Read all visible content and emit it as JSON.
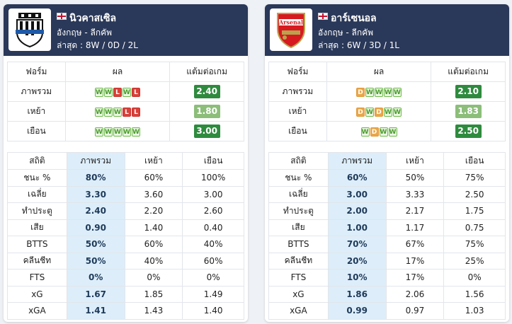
{
  "colors": {
    "header_bg": "#2a3859",
    "highlight_col": "#ddeefa",
    "win": "#6dbb4a",
    "draw": "#e29a34",
    "loss": "#c9302c",
    "score_dark": "#2e8b3e",
    "score_light": "#8cbe7a"
  },
  "teams": [
    {
      "name": "นิวคาสเซิล",
      "league": "อังกฤษ - ลีกคัพ",
      "recent": "ล่าสุด : 8W / 0D / 2L",
      "crest_icon": "newcastle-crest-icon",
      "form_headers": [
        "ฟอร์ม",
        "ผล",
        "แต้มต่อเกม"
      ],
      "form_rows": [
        {
          "label": "ภาพรวม",
          "results": [
            "W",
            "W",
            "L",
            "W",
            "L"
          ],
          "ppg": "2.40",
          "ppg_style": "dark"
        },
        {
          "label": "เหย้า",
          "results": [
            "W",
            "W",
            "W",
            "L",
            "L"
          ],
          "ppg": "1.80",
          "ppg_style": "light"
        },
        {
          "label": "เยือน",
          "results": [
            "W",
            "W",
            "W",
            "W",
            "W"
          ],
          "ppg": "3.00",
          "ppg_style": "dark"
        }
      ],
      "stat_headers": [
        "สถิติ",
        "ภาพรวม",
        "เหย้า",
        "เยือน"
      ],
      "stat_rows": [
        [
          "ชนะ %",
          "80%",
          "60%",
          "100%"
        ],
        [
          "เฉลี่ย",
          "3.30",
          "3.60",
          "3.00"
        ],
        [
          "ทำประตู",
          "2.40",
          "2.20",
          "2.60"
        ],
        [
          "เสีย",
          "0.90",
          "1.40",
          "0.40"
        ],
        [
          "BTTS",
          "50%",
          "60%",
          "40%"
        ],
        [
          "คลีนชีท",
          "50%",
          "40%",
          "60%"
        ],
        [
          "FTS",
          "0%",
          "0%",
          "0%"
        ],
        [
          "xG",
          "1.67",
          "1.85",
          "1.49"
        ],
        [
          "xGA",
          "1.41",
          "1.43",
          "1.40"
        ]
      ]
    },
    {
      "name": "อาร์เซนอล",
      "league": "อังกฤษ - ลีกคัพ",
      "recent": "ล่าสุด : 6W / 3D / 1L",
      "crest_icon": "arsenal-crest-icon",
      "crest_text": "Arsenal",
      "form_headers": [
        "ฟอร์ม",
        "ผล",
        "แต้มต่อเกม"
      ],
      "form_rows": [
        {
          "label": "ภาพรวม",
          "results": [
            "D",
            "W",
            "W",
            "W",
            "W"
          ],
          "ppg": "2.10",
          "ppg_style": "dark"
        },
        {
          "label": "เหย้า",
          "results": [
            "D",
            "W",
            "D",
            "W",
            "W"
          ],
          "ppg": "1.83",
          "ppg_style": "light"
        },
        {
          "label": "เยือน",
          "results": [
            "W",
            "D",
            "W",
            "W"
          ],
          "ppg": "2.50",
          "ppg_style": "dark"
        }
      ],
      "stat_headers": [
        "สถิติ",
        "ภาพรวม",
        "เหย้า",
        "เยือน"
      ],
      "stat_rows": [
        [
          "ชนะ %",
          "60%",
          "50%",
          "75%"
        ],
        [
          "เฉลี่ย",
          "3.00",
          "3.33",
          "2.50"
        ],
        [
          "ทำประตู",
          "2.00",
          "2.17",
          "1.75"
        ],
        [
          "เสีย",
          "1.00",
          "1.17",
          "0.75"
        ],
        [
          "BTTS",
          "70%",
          "67%",
          "75%"
        ],
        [
          "คลีนชีท",
          "20%",
          "17%",
          "25%"
        ],
        [
          "FTS",
          "10%",
          "17%",
          "0%"
        ],
        [
          "xG",
          "1.86",
          "2.06",
          "1.56"
        ],
        [
          "xGA",
          "0.99",
          "0.97",
          "1.03"
        ]
      ]
    }
  ]
}
